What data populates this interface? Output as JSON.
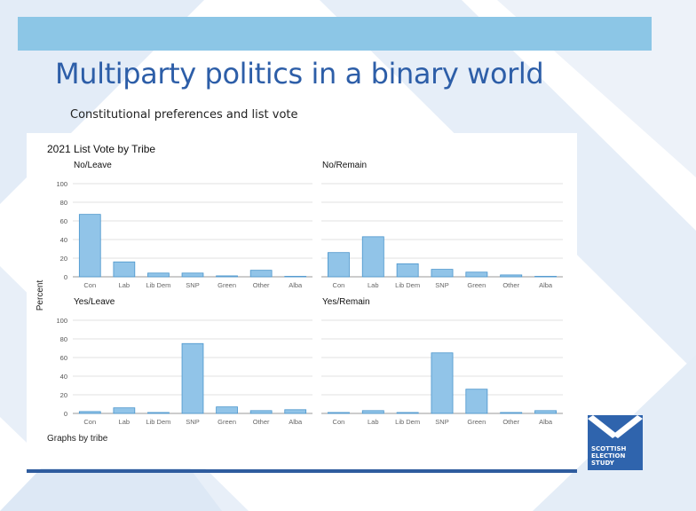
{
  "slide": {
    "title": "Multiparty politics in a binary world",
    "subtitle": "Constitutional preferences and list vote"
  },
  "logo": {
    "lines": [
      "SCOTTISH",
      "ELECTION",
      "STUDY"
    ]
  },
  "colors": {
    "bar_fill": "#91c4e8",
    "bar_stroke": "#4a95cc",
    "top_bar": "#8cc6e6",
    "title": "#2d5ea8",
    "rule": "#2f5c9e"
  },
  "chart_data": {
    "type": "bar",
    "title": "2021 List Vote by Tribe",
    "ylabel": "Percent",
    "note": "Graphs by tribe",
    "categories": [
      "Con",
      "Lab",
      "Lib Dem",
      "SNP",
      "Green",
      "Other",
      "Alba"
    ],
    "ylim": [
      0,
      100
    ],
    "yticks": [
      0,
      20,
      40,
      60,
      80,
      100
    ],
    "grid": true,
    "panels": [
      {
        "name": "No/Leave",
        "values": [
          67,
          16,
          4,
          4,
          1,
          7,
          0.5
        ]
      },
      {
        "name": "No/Remain",
        "values": [
          26,
          43,
          14,
          8,
          5,
          2,
          0.5
        ]
      },
      {
        "name": "Yes/Leave",
        "values": [
          2,
          6,
          1,
          75,
          7,
          3,
          4
        ]
      },
      {
        "name": "Yes/Remain",
        "values": [
          1,
          3,
          1,
          65,
          26,
          1,
          3
        ]
      }
    ]
  }
}
